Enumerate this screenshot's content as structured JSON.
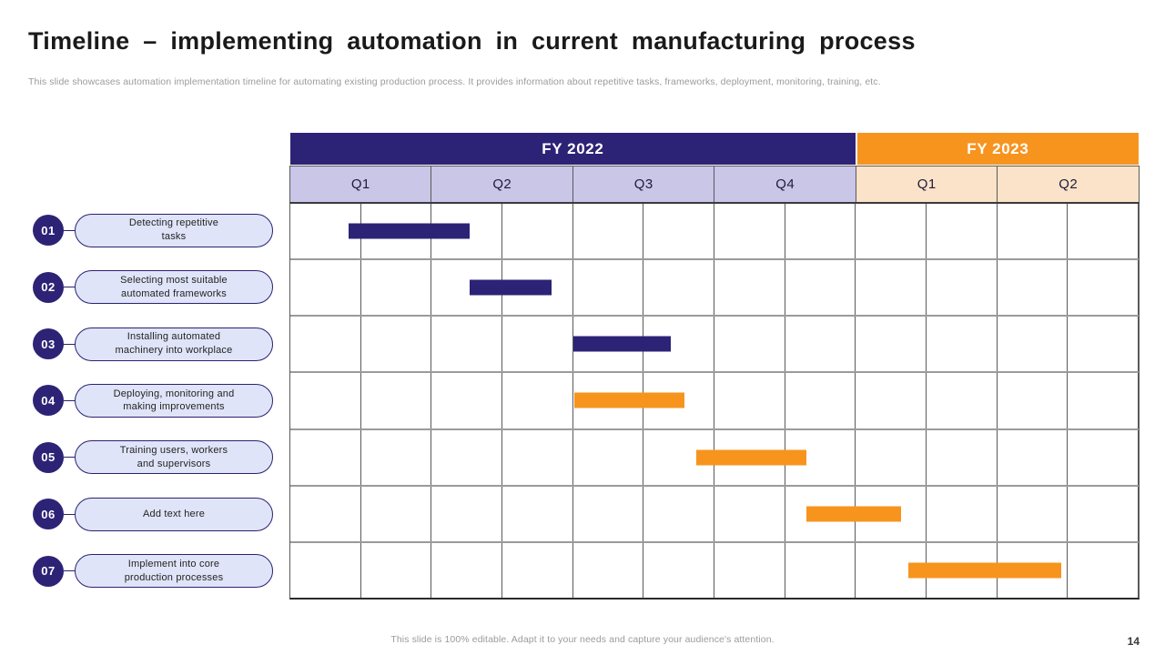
{
  "slide": {
    "title": "Timeline – implementing automation in current manufacturing process",
    "subtitle": "This slide showcases automation implementation timeline for automating existing production process. It provides information about repetitive tasks, frameworks, deployment, monitoring, training, etc.",
    "footer": "This slide is 100% editable. Adapt it to your needs and capture your audience's attention.",
    "page_number": "14"
  },
  "colors": {
    "indigo": "#2d2376",
    "orange": "#f7941e",
    "quarter_purple_bg": "#c9c6e8",
    "quarter_peach_bg": "#fae3c8",
    "pill_bg": "#e0e4f8"
  },
  "chart_data": {
    "type": "bar",
    "subtype": "gantt",
    "title": "Timeline – implementing automation in current manufacturing process",
    "legend_position": "none",
    "grid": "on",
    "x_axis": {
      "total_quarters": 6,
      "gridlines_every": 0.5,
      "groups": [
        {
          "label": "FY 2022",
          "header_color": "#2d2376",
          "quarter_bg": "#c9c6e8",
          "quarters": [
            "Q1",
            "Q2",
            "Q3",
            "Q4"
          ]
        },
        {
          "label": "FY 2023",
          "header_color": "#f7941e",
          "quarter_bg": "#fae3c8",
          "quarters": [
            "Q1",
            "Q2"
          ]
        }
      ]
    },
    "tasks": [
      {
        "num": "01",
        "lines": [
          "Detecting repetitive",
          "tasks"
        ],
        "start_q": 0.41,
        "end_q": 1.27,
        "color": "#2d2376"
      },
      {
        "num": "02",
        "lines": [
          "Selecting most suitable",
          "automated frameworks"
        ],
        "start_q": 1.27,
        "end_q": 1.85,
        "color": "#2d2376"
      },
      {
        "num": "03",
        "lines": [
          "Installing automated",
          "machinery into workplace"
        ],
        "start_q": 2.0,
        "end_q": 2.69,
        "color": "#2d2376"
      },
      {
        "num": "04",
        "lines": [
          "Deploying, monitoring and",
          "making improvements"
        ],
        "start_q": 2.01,
        "end_q": 2.79,
        "color": "#f7941e"
      },
      {
        "num": "05",
        "lines": [
          "Training users, workers",
          "and supervisors"
        ],
        "start_q": 2.87,
        "end_q": 3.65,
        "color": "#f7941e"
      },
      {
        "num": "06",
        "lines": [
          "Add text here"
        ],
        "start_q": 3.65,
        "end_q": 4.32,
        "color": "#f7941e"
      },
      {
        "num": "07",
        "lines": [
          "Implement into core",
          "production processes"
        ],
        "start_q": 4.37,
        "end_q": 5.45,
        "color": "#f7941e"
      }
    ]
  }
}
